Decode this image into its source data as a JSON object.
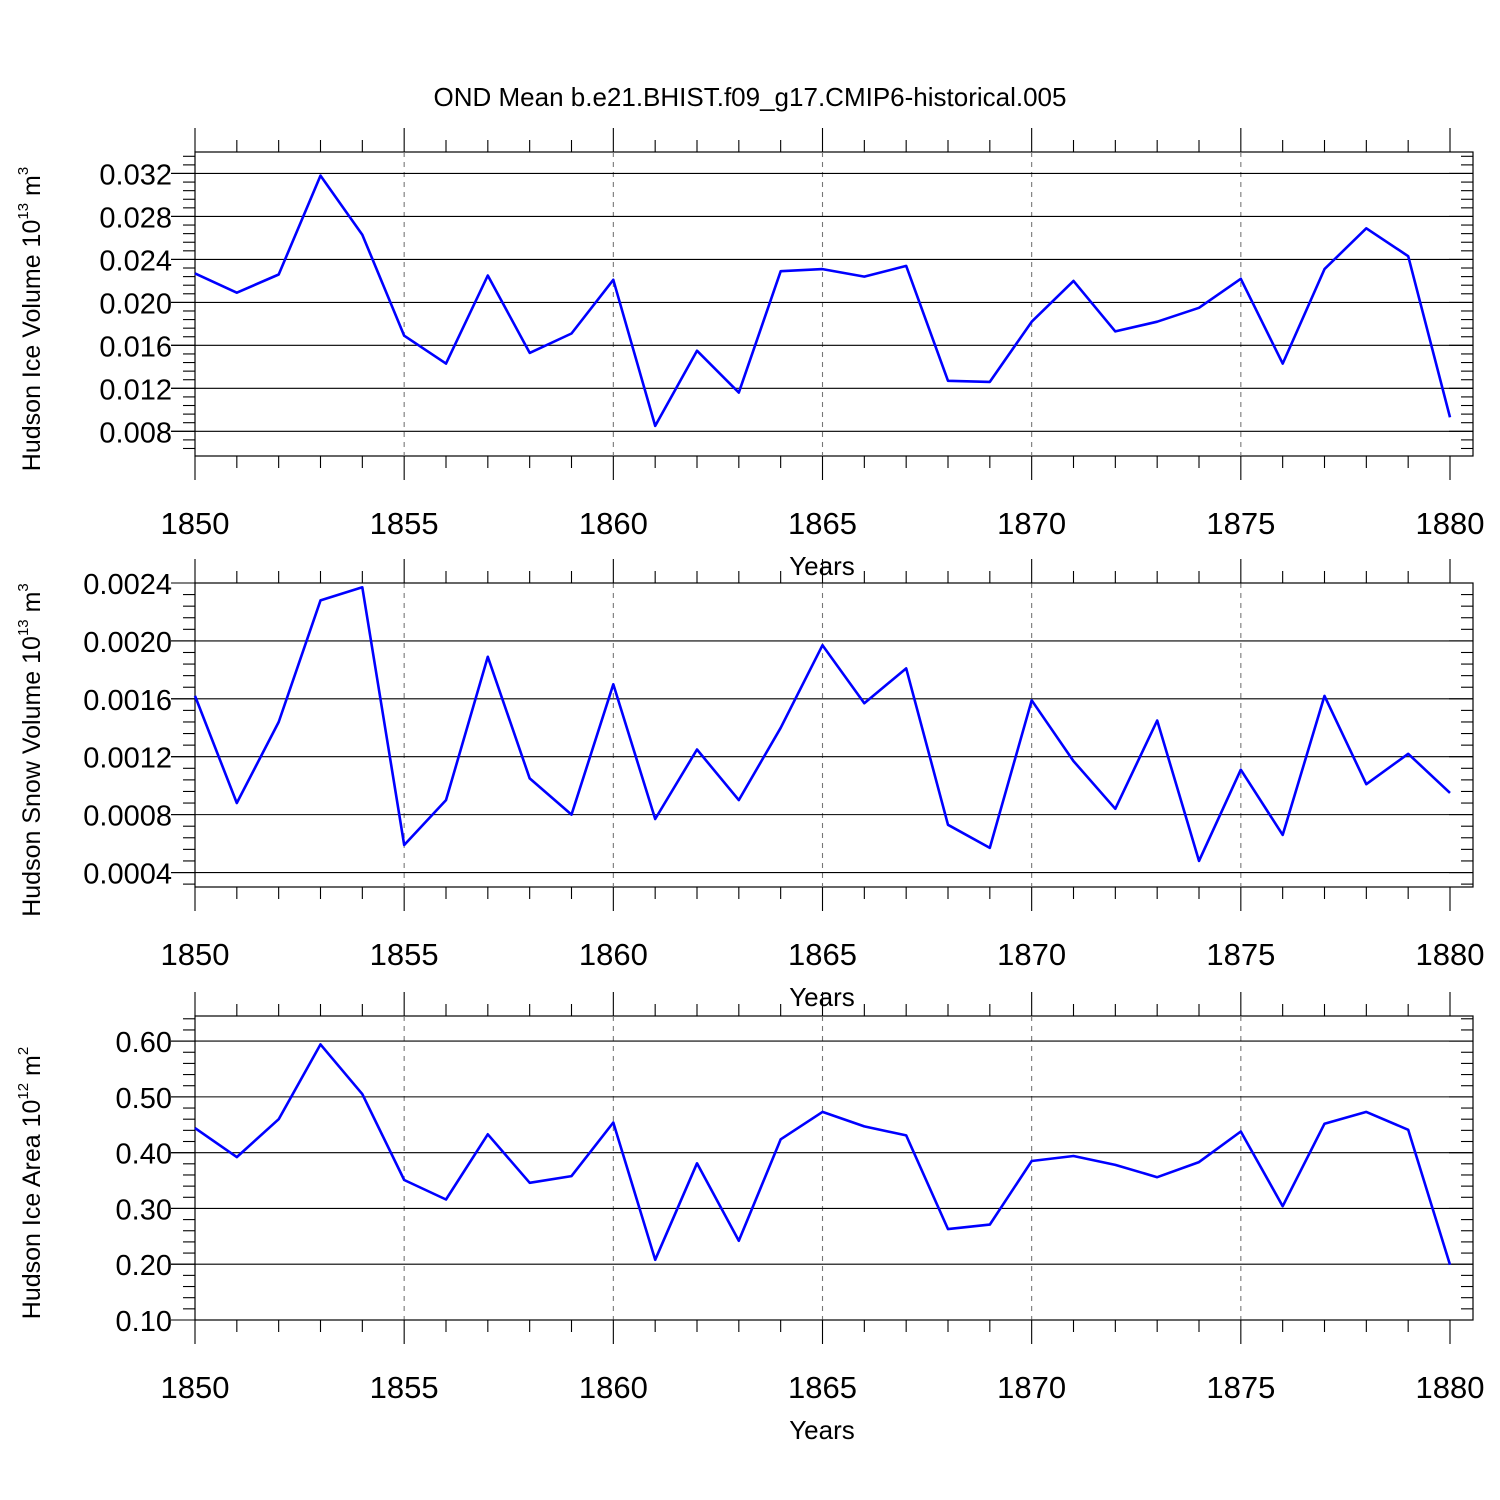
{
  "title": "OND Mean b.e21.BHIST.f09_g17.CMIP6-historical.005",
  "colors": {
    "series": "#0000ff",
    "grid": "#777777",
    "axis": "#000000"
  },
  "chart_data": [
    {
      "type": "line",
      "ylabel": {
        "base": "Hudson Ice Volume 10",
        "exponent": "13",
        "unit": " m",
        "unit_exponent": "3"
      },
      "xlabel": "Years",
      "xlim": [
        1850,
        1880
      ],
      "ylim": [
        0.0057,
        0.034
      ],
      "x_ticks": [
        "1850",
        "1855",
        "1860",
        "1865",
        "1870",
        "1875",
        "1880"
      ],
      "y_ticks": [
        "0.008",
        "0.012",
        "0.016",
        "0.020",
        "0.024",
        "0.028",
        "0.032"
      ],
      "grid": "dashed vertical at major x ticks",
      "x": [
        1850,
        1851,
        1852,
        1853,
        1854,
        1855,
        1856,
        1857,
        1858,
        1859,
        1860,
        1861,
        1862,
        1863,
        1864,
        1865,
        1866,
        1867,
        1868,
        1869,
        1870,
        1871,
        1872,
        1873,
        1874,
        1875,
        1876,
        1877,
        1878,
        1879,
        1880
      ],
      "values": [
        0.0227,
        0.0209,
        0.0226,
        0.0318,
        0.0263,
        0.0169,
        0.0143,
        0.0225,
        0.0153,
        0.0171,
        0.0221,
        0.0085,
        0.0155,
        0.0116,
        0.0229,
        0.0231,
        0.0224,
        0.0234,
        0.0127,
        0.0126,
        0.0182,
        0.022,
        0.0173,
        0.0182,
        0.0195,
        0.0222,
        0.0143,
        0.0231,
        0.0269,
        0.0243,
        0.0093
      ]
    },
    {
      "type": "line",
      "ylabel": {
        "base": "Hudson Snow Volume 10",
        "exponent": "13",
        "unit": " m",
        "unit_exponent": "3"
      },
      "xlabel": "Years",
      "xlim": [
        1850,
        1880
      ],
      "ylim": [
        0.0003,
        0.0024
      ],
      "x_ticks": [
        "1850",
        "1855",
        "1860",
        "1865",
        "1870",
        "1875",
        "1880"
      ],
      "y_ticks": [
        "0.0004",
        "0.0008",
        "0.0012",
        "0.0016",
        "0.0020",
        "0.0024"
      ],
      "grid": "dashed vertical at major x ticks",
      "x": [
        1850,
        1851,
        1852,
        1853,
        1854,
        1855,
        1856,
        1857,
        1858,
        1859,
        1860,
        1861,
        1862,
        1863,
        1864,
        1865,
        1866,
        1867,
        1868,
        1869,
        1870,
        1871,
        1872,
        1873,
        1874,
        1875,
        1876,
        1877,
        1878,
        1879,
        1880
      ],
      "values": [
        0.00162,
        0.00088,
        0.00144,
        0.00228,
        0.00237,
        0.00059,
        0.0009,
        0.00189,
        0.00105,
        0.0008,
        0.0017,
        0.00077,
        0.00125,
        0.0009,
        0.0014,
        0.00197,
        0.00157,
        0.00181,
        0.00073,
        0.00057,
        0.00159,
        0.00117,
        0.00084,
        0.00145,
        0.00048,
        0.00111,
        0.00066,
        0.00162,
        0.00101,
        0.00122,
        0.00095
      ]
    },
    {
      "type": "line",
      "ylabel": {
        "base": "Hudson Ice Area 10",
        "exponent": "12",
        "unit": " m",
        "unit_exponent": "2"
      },
      "xlabel": "Years",
      "xlim": [
        1850,
        1880
      ],
      "ylim": [
        0.1,
        0.645
      ],
      "x_ticks": [
        "1850",
        "1855",
        "1860",
        "1865",
        "1870",
        "1875",
        "1880"
      ],
      "y_ticks": [
        "0.10",
        "0.20",
        "0.30",
        "0.40",
        "0.50",
        "0.60"
      ],
      "grid": "dashed vertical at major x ticks",
      "x": [
        1850,
        1851,
        1852,
        1853,
        1854,
        1855,
        1856,
        1857,
        1858,
        1859,
        1860,
        1861,
        1862,
        1863,
        1864,
        1865,
        1866,
        1867,
        1868,
        1869,
        1870,
        1871,
        1872,
        1873,
        1874,
        1875,
        1876,
        1877,
        1878,
        1879,
        1880
      ],
      "values": [
        0.444,
        0.392,
        0.46,
        0.594,
        0.505,
        0.351,
        0.316,
        0.433,
        0.346,
        0.358,
        0.454,
        0.208,
        0.381,
        0.242,
        0.424,
        0.473,
        0.447,
        0.431,
        0.263,
        0.271,
        0.385,
        0.394,
        0.378,
        0.356,
        0.383,
        0.438,
        0.304,
        0.452,
        0.473,
        0.441,
        0.199
      ]
    }
  ]
}
